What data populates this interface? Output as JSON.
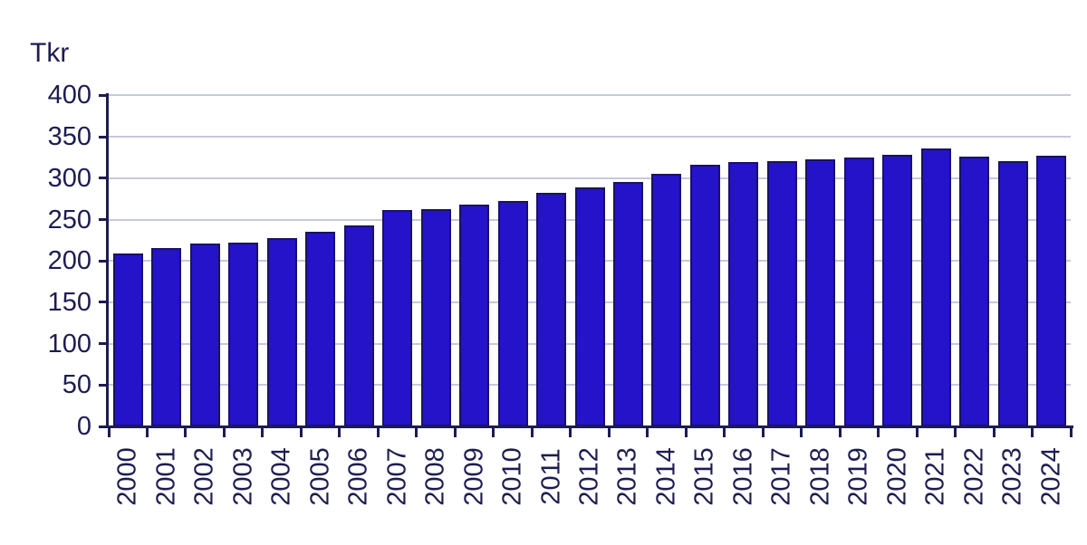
{
  "chart_data": {
    "type": "bar",
    "title": "",
    "ylabel": "Tkr",
    "xlabel": "",
    "categories": [
      "2000",
      "2001",
      "2002",
      "2003",
      "2004",
      "2005",
      "2006",
      "2007",
      "2008",
      "2009",
      "2010",
      "2011",
      "2012",
      "2013",
      "2014",
      "2015",
      "2016",
      "2017",
      "2018",
      "2019",
      "2020",
      "2021",
      "2022",
      "2023",
      "2024"
    ],
    "values": [
      209,
      215,
      221,
      222,
      228,
      235,
      243,
      261,
      263,
      268,
      272,
      282,
      289,
      295,
      305,
      316,
      319,
      321,
      323,
      325,
      328,
      336,
      326,
      321,
      327
    ],
    "ylim": [
      0,
      400
    ],
    "ytick_step": 50,
    "yticks": [
      0,
      50,
      100,
      150,
      200,
      250,
      300,
      350,
      400
    ],
    "grid": "horizontal",
    "legend": "none",
    "x_label_rotation_deg": -90,
    "colors": {
      "bar_fill": "#2513CA",
      "bar_border": "#191266",
      "axis": "#1C1C52",
      "grid": "#C7C7DF",
      "text": "#1D1D52",
      "background": "#FFFFFF"
    }
  }
}
